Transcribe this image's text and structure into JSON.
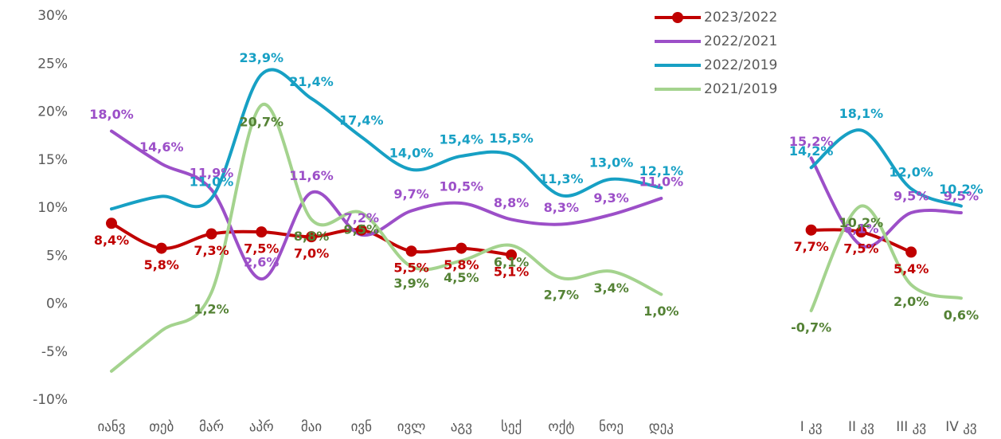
{
  "chart_data": {
    "type": "line",
    "categories": [
      "იანვ",
      "თებ",
      "მარ",
      "აპრ",
      "მაი",
      "ივნ",
      "ივლ",
      "აგვ",
      "სექ",
      "ოქტ",
      "ნოე",
      "დეკ",
      null,
      null,
      "I კვ",
      "II კვ",
      "III კვ",
      "IV კვ"
    ],
    "ylim": [
      -10,
      30
    ],
    "yticks": [
      {
        "value": -10,
        "label": "-10%"
      },
      {
        "value": -5,
        "label": "-5%"
      },
      {
        "value": 0,
        "label": "0%"
      },
      {
        "value": 5,
        "label": "5%"
      },
      {
        "value": 10,
        "label": "10%"
      },
      {
        "value": 15,
        "label": "15%"
      },
      {
        "value": 20,
        "label": "20%"
      },
      {
        "value": 25,
        "label": "25%"
      },
      {
        "value": 30,
        "label": "30%"
      }
    ],
    "grid": false,
    "legend": "top-right",
    "series": [
      {
        "name": "2023/2022",
        "color": "#c00000",
        "label_color": "#c00000",
        "markers": true,
        "values": [
          8.4,
          5.8,
          7.3,
          7.5,
          7.0,
          7.7,
          5.5,
          5.8,
          5.1,
          null,
          null,
          null,
          null,
          null,
          7.7,
          7.5,
          5.4,
          null
        ],
        "value_labels": [
          "8,4%",
          "5,8%",
          "7,3%",
          "7,5%",
          "7,0%",
          null,
          "5,5%",
          "5,8%",
          "5,1%",
          null,
          null,
          null,
          null,
          null,
          "7,7%",
          "7,5%",
          "5,4%",
          null
        ]
      },
      {
        "name": "2022/2021",
        "color": "#9c4fc8",
        "label_color": "#9c4fc8",
        "markers": false,
        "values": [
          18.0,
          14.6,
          11.9,
          2.6,
          11.6,
          7.2,
          9.7,
          10.5,
          8.8,
          8.3,
          9.3,
          11.0,
          null,
          null,
          15.2,
          6.1,
          9.5,
          9.5
        ],
        "value_labels": [
          "18,0%",
          "14,6%",
          "11,9%",
          "2,6%",
          "11,6%",
          "7,2%",
          "9,7%",
          "10,5%",
          "8,8%",
          "8,3%",
          "9,3%",
          "11,0%",
          null,
          null,
          "15,2%",
          "6,1%",
          "9,5%",
          "9,5%"
        ]
      },
      {
        "name": "2022/2019",
        "color": "#17a0c4",
        "label_color": "#17a0c4",
        "markers": false,
        "values": [
          9.9,
          11.2,
          11.0,
          23.9,
          21.4,
          17.4,
          14.0,
          15.4,
          15.5,
          11.3,
          13.0,
          12.1,
          null,
          null,
          14.2,
          18.1,
          12.0,
          10.2
        ],
        "value_labels": [
          null,
          null,
          "11,0%",
          "23,9%",
          "21,4%",
          "17,4%",
          "14,0%",
          "15,4%",
          "15,5%",
          "11,3%",
          "13,0%",
          "12,1%",
          null,
          null,
          "14,2%",
          "18,1%",
          "12,0%",
          "10,2%"
        ]
      },
      {
        "name": "2021/2019",
        "color": "#a4d38e",
        "label_color": "#548235",
        "markers": false,
        "values": [
          -7.0,
          -2.8,
          1.2,
          20.7,
          8.8,
          9.5,
          3.9,
          4.5,
          6.1,
          2.7,
          3.4,
          1.0,
          null,
          null,
          -0.7,
          10.2,
          2.0,
          0.6
        ],
        "value_labels": [
          null,
          null,
          "1,2%",
          "20,7%",
          "8,8%",
          "9,5%",
          "3,9%",
          "4,5%",
          "6,1%",
          "2,7%",
          "3,4%",
          "1,0%",
          null,
          null,
          "-0,7%",
          "10,2%",
          "2,0%",
          "0,6%"
        ]
      }
    ]
  }
}
